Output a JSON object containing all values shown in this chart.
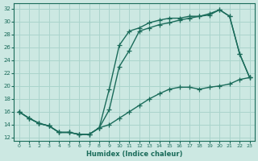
{
  "xlabel": "Humidex (Indice chaleur)",
  "bg_color": "#cce8e2",
  "grid_color": "#aad4cc",
  "line_color": "#1a6b5a",
  "xlim": [
    -0.5,
    23.5
  ],
  "ylim": [
    11.5,
    32.8
  ],
  "xticks": [
    0,
    1,
    2,
    3,
    4,
    5,
    6,
    7,
    8,
    9,
    10,
    11,
    12,
    13,
    14,
    15,
    16,
    17,
    18,
    19,
    20,
    21,
    22,
    23
  ],
  "yticks": [
    12,
    14,
    16,
    18,
    20,
    22,
    24,
    26,
    28,
    30,
    32
  ],
  "line1_x": [
    0,
    1,
    2,
    3,
    4,
    5,
    6,
    7,
    8,
    9,
    10,
    11,
    12,
    13,
    14,
    15,
    16,
    17,
    18,
    19,
    20,
    21,
    22,
    23
  ],
  "line1_y": [
    16.0,
    15.0,
    14.2,
    13.8,
    12.8,
    12.8,
    12.5,
    12.5,
    13.5,
    19.5,
    26.3,
    28.5,
    29.0,
    29.8,
    30.2,
    30.5,
    30.5,
    30.8,
    30.8,
    31.2,
    31.8,
    30.8,
    25.0,
    21.3
  ],
  "line2_x": [
    0,
    1,
    2,
    3,
    4,
    5,
    6,
    7,
    8,
    9,
    10,
    11,
    12,
    13,
    14,
    15,
    16,
    17,
    18,
    19,
    20,
    21,
    22,
    23
  ],
  "line2_y": [
    16.0,
    15.0,
    14.2,
    13.8,
    12.8,
    12.8,
    12.5,
    12.5,
    13.5,
    16.3,
    23.0,
    25.5,
    28.5,
    29.0,
    29.5,
    29.8,
    30.2,
    30.5,
    30.8,
    31.0,
    31.8,
    30.8,
    25.0,
    21.3
  ],
  "line3_x": [
    0,
    1,
    2,
    3,
    4,
    5,
    6,
    7,
    8,
    9,
    10,
    11,
    12,
    13,
    14,
    15,
    16,
    17,
    18,
    19,
    20,
    21,
    22,
    23
  ],
  "line3_y": [
    16.0,
    15.0,
    14.2,
    13.8,
    12.8,
    12.8,
    12.5,
    12.5,
    13.5,
    14.0,
    15.0,
    16.0,
    17.0,
    18.0,
    18.8,
    19.5,
    19.8,
    19.8,
    19.5,
    19.8,
    20.0,
    20.3,
    21.0,
    21.3
  ]
}
